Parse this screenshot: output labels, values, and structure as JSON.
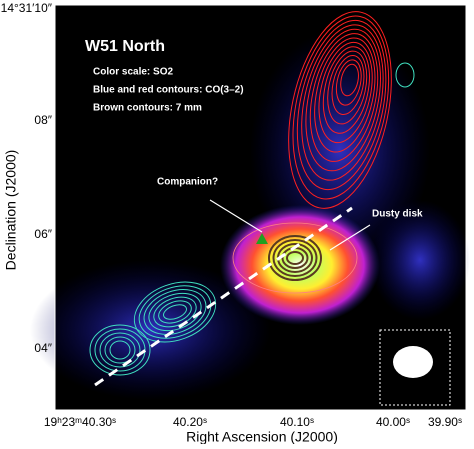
{
  "figure": {
    "title": "W51 North",
    "legend_lines": [
      "Color scale: SO2",
      "Blue and red contours: CO(3–2)",
      "Brown contours: 7 mm"
    ],
    "annotations": [
      "Companion?",
      "Dusty disk"
    ],
    "x_axis": {
      "label": "Right Ascension (J2000)",
      "ticks": [
        "19ʰ23ᵐ40.30ˢ",
        "40.20ˢ",
        "40.10ˢ",
        "40.00ˢ",
        "39.90ˢ"
      ]
    },
    "y_axis": {
      "label": "Declination (J2000)",
      "ticks": [
        "14°31′10″",
        "08″",
        "06″",
        "04″"
      ]
    }
  }
}
